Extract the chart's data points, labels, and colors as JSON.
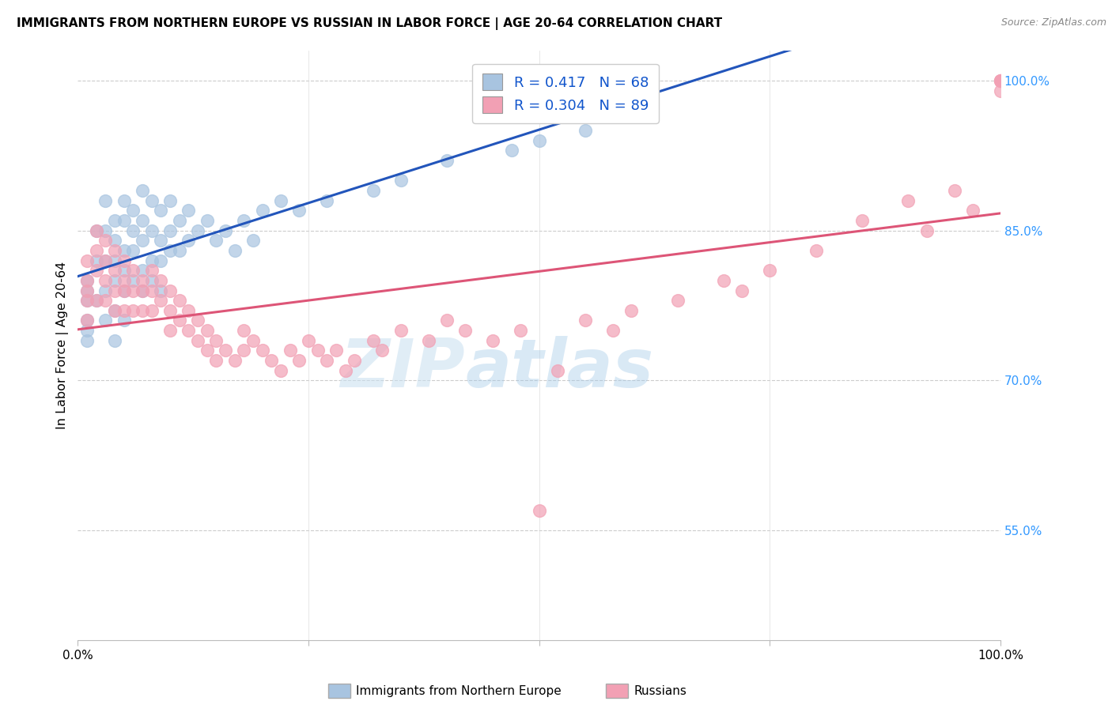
{
  "title": "IMMIGRANTS FROM NORTHERN EUROPE VS RUSSIAN IN LABOR FORCE | AGE 20-64 CORRELATION CHART",
  "source": "Source: ZipAtlas.com",
  "ylabel": "In Labor Force | Age 20-64",
  "y_ticks": [
    55.0,
    70.0,
    85.0,
    100.0
  ],
  "y_tick_labels": [
    "55.0%",
    "70.0%",
    "85.0%",
    "100.0%"
  ],
  "xlim": [
    0,
    100
  ],
  "ylim": [
    44,
    103
  ],
  "blue_R": 0.417,
  "blue_N": 68,
  "pink_R": 0.304,
  "pink_N": 89,
  "legend_label_blue": "Immigrants from Northern Europe",
  "legend_label_pink": "Russians",
  "blue_color": "#a8c4e0",
  "pink_color": "#f2a0b4",
  "blue_line_color": "#2255bb",
  "pink_line_color": "#dd5577",
  "watermark_zip": "ZIP",
  "watermark_atlas": "atlas",
  "blue_scatter_x": [
    1,
    1,
    1,
    1,
    1,
    1,
    2,
    2,
    2,
    3,
    3,
    3,
    3,
    3,
    4,
    4,
    4,
    4,
    4,
    4,
    5,
    5,
    5,
    5,
    5,
    5,
    6,
    6,
    6,
    6,
    7,
    7,
    7,
    7,
    7,
    8,
    8,
    8,
    8,
    9,
    9,
    9,
    9,
    10,
    10,
    10,
    11,
    11,
    12,
    12,
    13,
    14,
    15,
    16,
    17,
    18,
    19,
    20,
    22,
    24,
    27,
    32,
    35,
    40,
    47,
    50,
    55,
    62
  ],
  "blue_scatter_y": [
    80,
    79,
    78,
    76,
    75,
    74,
    85,
    82,
    78,
    88,
    85,
    82,
    79,
    76,
    86,
    84,
    82,
    80,
    77,
    74,
    88,
    86,
    83,
    81,
    79,
    76,
    87,
    85,
    83,
    80,
    89,
    86,
    84,
    81,
    79,
    88,
    85,
    82,
    80,
    87,
    84,
    82,
    79,
    88,
    85,
    83,
    86,
    83,
    87,
    84,
    85,
    86,
    84,
    85,
    83,
    86,
    84,
    87,
    88,
    87,
    88,
    89,
    90,
    92,
    93,
    94,
    95,
    100
  ],
  "pink_scatter_x": [
    1,
    1,
    1,
    1,
    1,
    2,
    2,
    2,
    2,
    3,
    3,
    3,
    3,
    4,
    4,
    4,
    4,
    5,
    5,
    5,
    5,
    6,
    6,
    6,
    7,
    7,
    7,
    8,
    8,
    8,
    9,
    9,
    10,
    10,
    10,
    11,
    11,
    12,
    12,
    13,
    13,
    14,
    14,
    15,
    15,
    16,
    17,
    18,
    18,
    19,
    20,
    21,
    22,
    23,
    24,
    25,
    26,
    27,
    28,
    29,
    30,
    32,
    33,
    35,
    38,
    40,
    42,
    45,
    48,
    50,
    52,
    55,
    58,
    60,
    65,
    70,
    72,
    75,
    80,
    85,
    90,
    92,
    95,
    97,
    100,
    100,
    100,
    100,
    100
  ],
  "pink_scatter_y": [
    82,
    80,
    79,
    78,
    76,
    85,
    83,
    81,
    78,
    84,
    82,
    80,
    78,
    83,
    81,
    79,
    77,
    82,
    80,
    79,
    77,
    81,
    79,
    77,
    80,
    79,
    77,
    81,
    79,
    77,
    80,
    78,
    79,
    77,
    75,
    78,
    76,
    77,
    75,
    76,
    74,
    75,
    73,
    74,
    72,
    73,
    72,
    75,
    73,
    74,
    73,
    72,
    71,
    73,
    72,
    74,
    73,
    72,
    73,
    71,
    72,
    74,
    73,
    75,
    74,
    76,
    75,
    74,
    75,
    57,
    71,
    76,
    75,
    77,
    78,
    80,
    79,
    81,
    83,
    86,
    88,
    85,
    89,
    87,
    100,
    99,
    100,
    100,
    100
  ]
}
